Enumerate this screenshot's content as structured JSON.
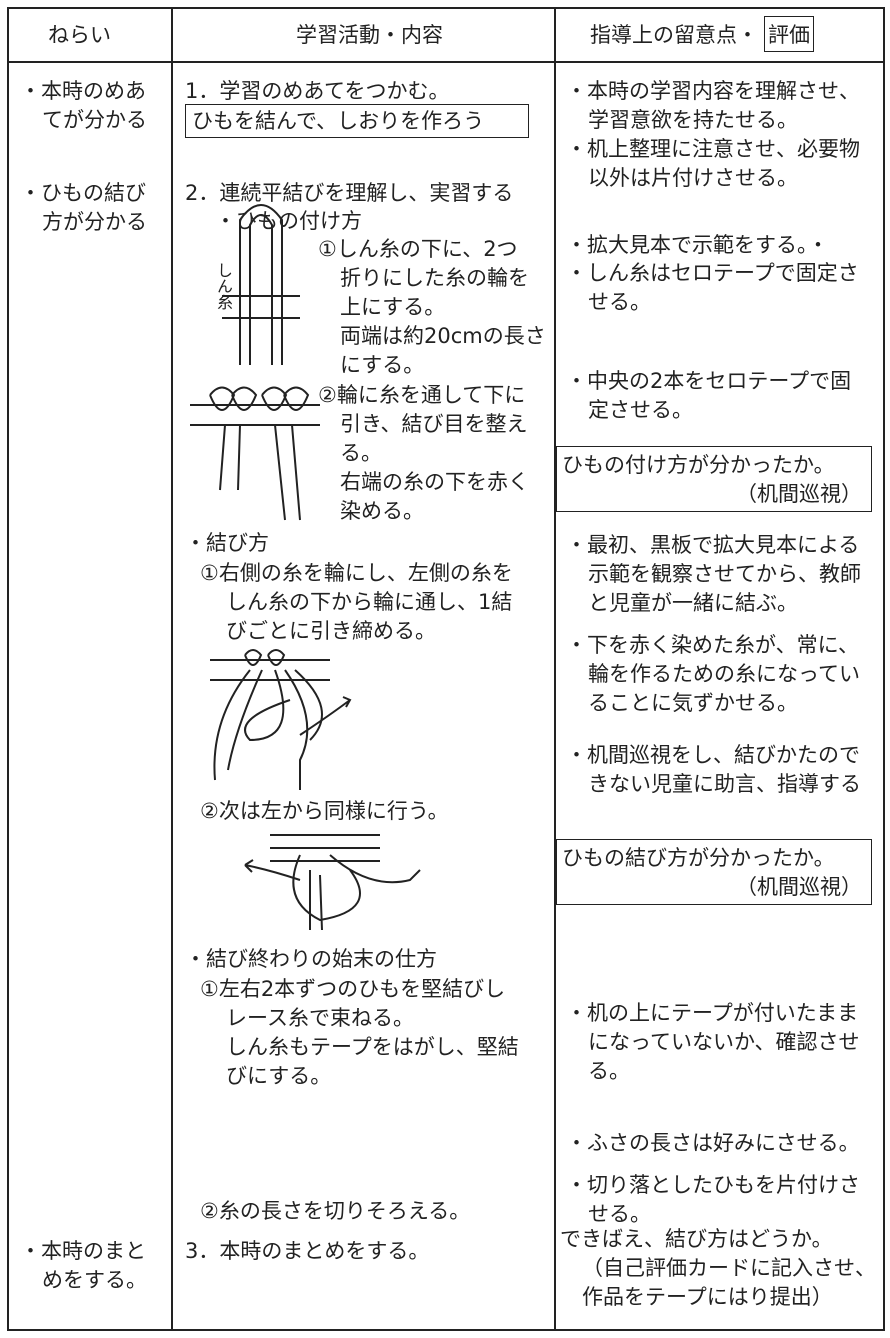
{
  "header": {
    "aim": "ねらい",
    "activity": "学習活動・内容",
    "note": "指導上の留意点・",
    "note_boxed": "評価"
  },
  "aims": [
    [
      "・本時のめあ",
      "てが分かる"
    ],
    [
      "・ひもの結び",
      "方が分かる"
    ],
    [
      "・本時のまと",
      "めをする。"
    ]
  ],
  "activities": [
    [
      "1．学習のめあてをつかむ。"
    ],
    [
      "ひもを結んで、しおりを作ろう"
    ],
    [
      "2．連続平結びを理解し、実習する"
    ],
    [
      "・ひもの付け方"
    ],
    [
      "①しん糸の下に、2つ",
      "折りにした糸の輪を",
      "上にする。",
      "両端は約20cmの長さ",
      "にする。"
    ],
    [
      "しん糸"
    ],
    [
      "②輪に糸を通して下に",
      "引き、結び目を整え",
      "る。",
      "右端の糸の下を赤く",
      "染める。"
    ],
    [
      "・結び方"
    ],
    [
      "①右側の糸を輪にし、左側の糸を",
      "しん糸の下から輪に通し、1結",
      "びごとに引き締める。"
    ],
    [
      "②次は左から同様に行う。"
    ],
    [
      "・結び終わりの始末の仕方"
    ],
    [
      "①左右2本ずつのひもを堅結びし",
      "レース糸で束ねる。",
      "しん糸もテープをはがし、堅結",
      "びにする。"
    ],
    [
      "②糸の長さを切りそろえる。"
    ],
    [
      "3．本時のまとめをする。"
    ]
  ],
  "notes": [
    [
      "・本時の学習内容を理解させ、",
      "学習意欲を持たせる。"
    ],
    [
      "・机上整理に注意させ、必要物",
      "以外は片付けさせる。"
    ],
    [
      "・拡大見本で示範をする。・"
    ],
    [
      "・しん糸はセロテープで固定さ",
      "せる。"
    ],
    [
      "・中央の2本をセロテープで固",
      "定させる。"
    ],
    [
      "ひもの付け方が分かったか。",
      "（机間巡視）"
    ],
    [
      "・最初、黒板で拡大見本による",
      "示範を観察させてから、教師",
      "と児童が一緒に結ぶ。"
    ],
    [
      "・下を赤く染めた糸が、常に、",
      "輪を作るための糸になってい",
      "ることに気ずかせる。"
    ],
    [
      "・机間巡視をし、結びかたので",
      "きない児童に助言、指導する"
    ],
    [
      "ひもの結び方が分かったか。",
      "（机間巡視）"
    ],
    [
      "・机の上にテープが付いたまま",
      "になっていないか、確認させ",
      "る。"
    ],
    [
      "・ふさの長さは好みにさせる。"
    ],
    [
      "・切り落としたひもを片付けさ",
      "せる。"
    ],
    [
      "できばえ、結び方はどうか。",
      "（自己評価カードに記入させ、",
      "作品をテープにはり提出）"
    ]
  ]
}
